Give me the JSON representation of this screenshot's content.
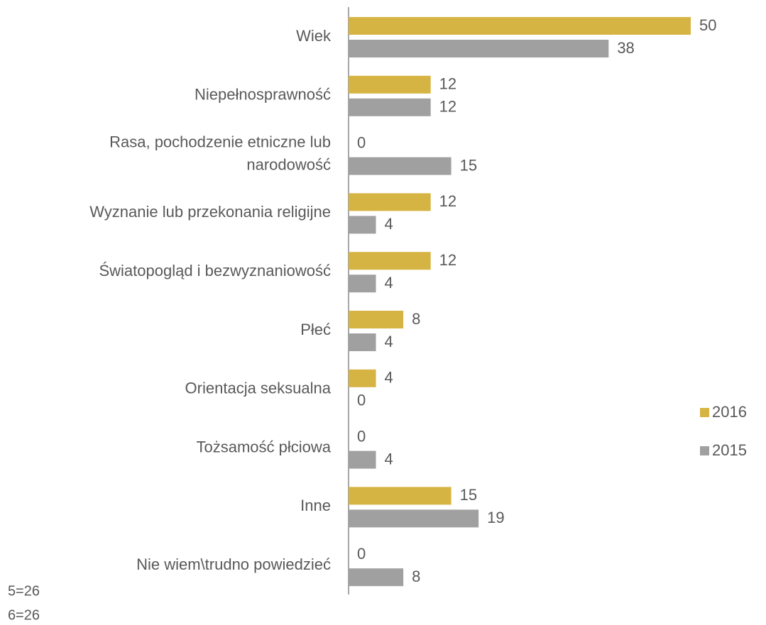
{
  "chart_data": {
    "type": "bar",
    "orientation": "horizontal",
    "categories": [
      "Wiek",
      "Niepełnosprawność",
      "Rasa, pochodzenie etniczne lub\nnarodowość",
      "Wyznanie lub przekonania religijne",
      "Światopogląd i bezwyznaniowość",
      "Płeć",
      "Orientacja seksualna",
      "Tożsamość płciowa",
      "Inne",
      "Nie wiem\\trudno powiedzieć"
    ],
    "series": [
      {
        "name": "2016",
        "color": "#d6b443",
        "values": [
          50,
          12,
          0,
          12,
          12,
          8,
          4,
          0,
          15,
          0
        ]
      },
      {
        "name": "2015",
        "color": "#a0a0a0",
        "values": [
          38,
          12,
          15,
          4,
          4,
          4,
          0,
          4,
          19,
          8
        ]
      }
    ],
    "xlim": [
      0,
      50
    ],
    "legend": "right",
    "notes": [
      "5=26",
      "6=26"
    ]
  }
}
